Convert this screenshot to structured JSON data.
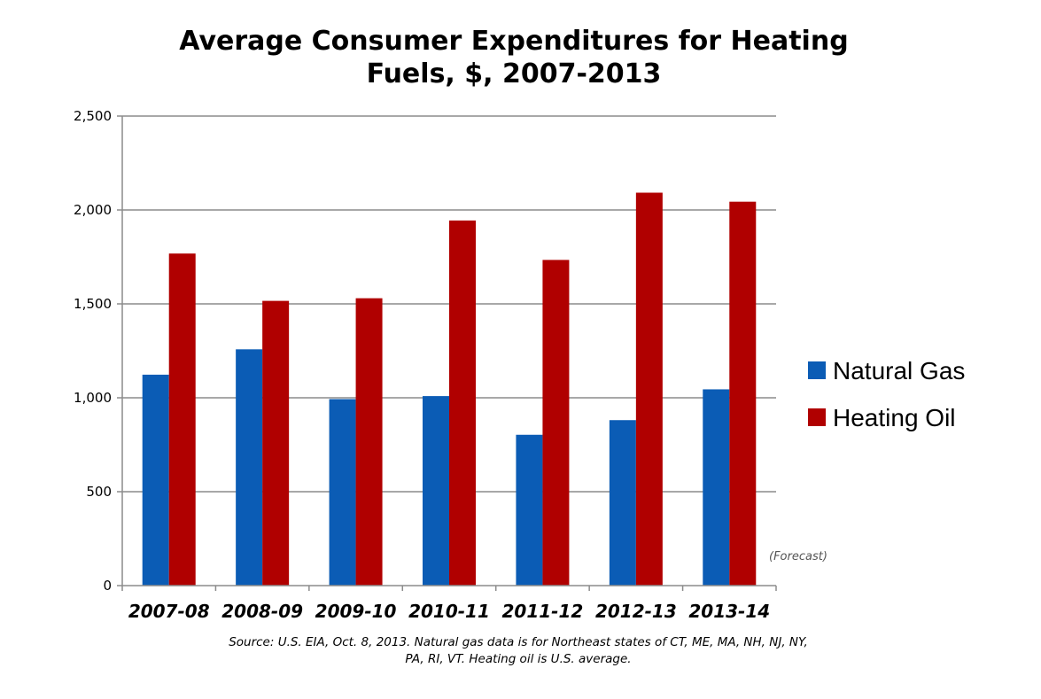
{
  "chart_data": {
    "type": "bar",
    "title_lines": [
      "Average Consumer Expenditures for Heating",
      "Fuels, $, 2007-2013"
    ],
    "categories": [
      "2007-08",
      "2008-09",
      "2009-10",
      "2010-11",
      "2011-12",
      "2012-13",
      "2013-14"
    ],
    "series": [
      {
        "name": "Natural Gas",
        "color": "#0B5CB5",
        "values": [
          1123,
          1258,
          993,
          1009,
          803,
          881,
          1045
        ]
      },
      {
        "name": "Heating Oil",
        "color": "#B00000",
        "values": [
          1768,
          1516,
          1530,
          1944,
          1734,
          2092,
          2044
        ]
      }
    ],
    "ylim": [
      0,
      2500
    ],
    "yticks": [
      0,
      500,
      1000,
      1500,
      2000,
      2500
    ],
    "ytick_labels": [
      "0",
      "500",
      "1,000",
      "1,500",
      "2,000",
      "2,500"
    ],
    "grid": true,
    "legend_position": "right",
    "annotation": "(Forecast)",
    "source_lines": [
      "Source: U.S. EIA, Oct. 8, 2013.  Natural gas data is for Northeast states of CT, ME, MA, NH, NJ, NY,",
      "PA, RI, VT.  Heating oil is U.S. average."
    ]
  }
}
